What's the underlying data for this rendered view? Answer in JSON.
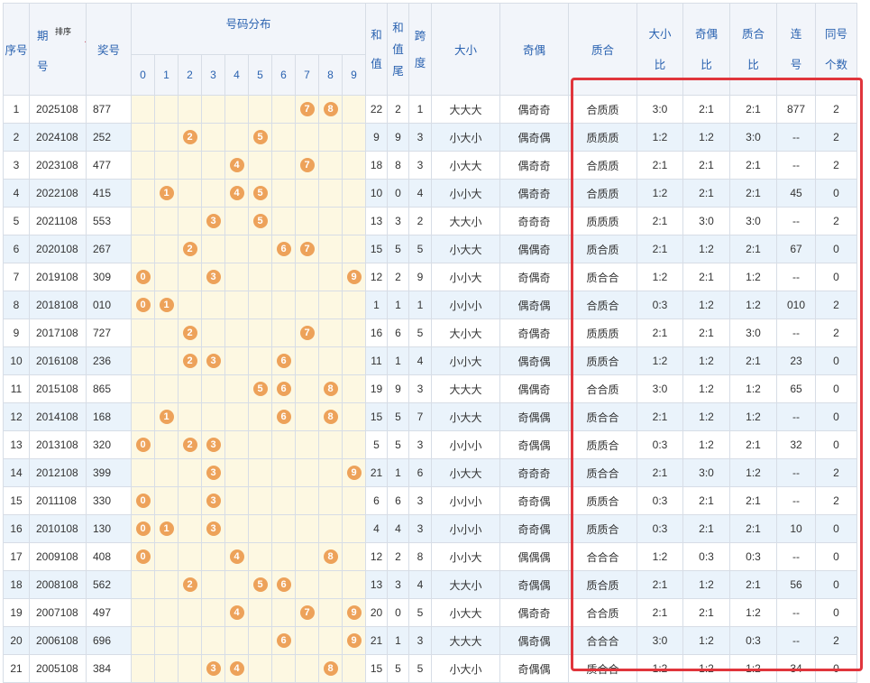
{
  "header": {
    "seq": "序号",
    "period_top": "期",
    "period_bottom": "号",
    "sort": "排序",
    "prize": "奖号",
    "dist": "号码分布",
    "digits": [
      "0",
      "1",
      "2",
      "3",
      "4",
      "5",
      "6",
      "7",
      "8",
      "9"
    ],
    "sum_top": "和",
    "sum_bottom": "值",
    "tail_top": "和",
    "tail_mid": "值",
    "tail_bottom": "尾",
    "span_top": "跨",
    "span_bottom": "度",
    "bigsmall": "大小",
    "oddeven": "奇偶",
    "primecomp": "质合",
    "bs_ratio_top": "大小",
    "bs_ratio_bottom": "比",
    "oe_ratio_top": "奇偶",
    "oe_ratio_bottom": "比",
    "pc_ratio_top": "质合",
    "pc_ratio_bottom": "比",
    "consec_top": "连",
    "consec_bottom": "号",
    "same_top": "同号",
    "same_bottom": "个数"
  },
  "rows": [
    {
      "seq": "1",
      "period": "2025108",
      "prize": "877",
      "sum": "22",
      "tail": "2",
      "span": "1",
      "bs": "大大大",
      "oe": "偶奇奇",
      "pc": "合质质",
      "bsr": "3:0",
      "oer": "2:1",
      "pcr": "2:1",
      "consec": "877",
      "same": "2"
    },
    {
      "seq": "2",
      "period": "2024108",
      "prize": "252",
      "sum": "9",
      "tail": "9",
      "span": "3",
      "bs": "小大小",
      "oe": "偶奇偶",
      "pc": "质质质",
      "bsr": "1:2",
      "oer": "1:2",
      "pcr": "3:0",
      "consec": "--",
      "same": "2"
    },
    {
      "seq": "3",
      "period": "2023108",
      "prize": "477",
      "sum": "18",
      "tail": "8",
      "span": "3",
      "bs": "小大大",
      "oe": "偶奇奇",
      "pc": "合质质",
      "bsr": "2:1",
      "oer": "2:1",
      "pcr": "2:1",
      "consec": "--",
      "same": "2"
    },
    {
      "seq": "4",
      "period": "2022108",
      "prize": "415",
      "sum": "10",
      "tail": "0",
      "span": "4",
      "bs": "小小大",
      "oe": "偶奇奇",
      "pc": "合质质",
      "bsr": "1:2",
      "oer": "2:1",
      "pcr": "2:1",
      "consec": "45",
      "same": "0"
    },
    {
      "seq": "5",
      "period": "2021108",
      "prize": "553",
      "sum": "13",
      "tail": "3",
      "span": "2",
      "bs": "大大小",
      "oe": "奇奇奇",
      "pc": "质质质",
      "bsr": "2:1",
      "oer": "3:0",
      "pcr": "3:0",
      "consec": "--",
      "same": "2"
    },
    {
      "seq": "6",
      "period": "2020108",
      "prize": "267",
      "sum": "15",
      "tail": "5",
      "span": "5",
      "bs": "小大大",
      "oe": "偶偶奇",
      "pc": "质合质",
      "bsr": "2:1",
      "oer": "1:2",
      "pcr": "2:1",
      "consec": "67",
      "same": "0"
    },
    {
      "seq": "7",
      "period": "2019108",
      "prize": "309",
      "sum": "12",
      "tail": "2",
      "span": "9",
      "bs": "小小大",
      "oe": "奇偶奇",
      "pc": "质合合",
      "bsr": "1:2",
      "oer": "2:1",
      "pcr": "1:2",
      "consec": "--",
      "same": "0"
    },
    {
      "seq": "8",
      "period": "2018108",
      "prize": "010",
      "sum": "1",
      "tail": "1",
      "span": "1",
      "bs": "小小小",
      "oe": "偶奇偶",
      "pc": "合质合",
      "bsr": "0:3",
      "oer": "1:2",
      "pcr": "1:2",
      "consec": "010",
      "same": "2"
    },
    {
      "seq": "9",
      "period": "2017108",
      "prize": "727",
      "sum": "16",
      "tail": "6",
      "span": "5",
      "bs": "大小大",
      "oe": "奇偶奇",
      "pc": "质质质",
      "bsr": "2:1",
      "oer": "2:1",
      "pcr": "3:0",
      "consec": "--",
      "same": "2"
    },
    {
      "seq": "10",
      "period": "2016108",
      "prize": "236",
      "sum": "11",
      "tail": "1",
      "span": "4",
      "bs": "小小大",
      "oe": "偶奇偶",
      "pc": "质质合",
      "bsr": "1:2",
      "oer": "1:2",
      "pcr": "2:1",
      "consec": "23",
      "same": "0"
    },
    {
      "seq": "11",
      "period": "2015108",
      "prize": "865",
      "sum": "19",
      "tail": "9",
      "span": "3",
      "bs": "大大大",
      "oe": "偶偶奇",
      "pc": "合合质",
      "bsr": "3:0",
      "oer": "1:2",
      "pcr": "1:2",
      "consec": "65",
      "same": "0"
    },
    {
      "seq": "12",
      "period": "2014108",
      "prize": "168",
      "sum": "15",
      "tail": "5",
      "span": "7",
      "bs": "小大大",
      "oe": "奇偶偶",
      "pc": "质合合",
      "bsr": "2:1",
      "oer": "1:2",
      "pcr": "1:2",
      "consec": "--",
      "same": "0"
    },
    {
      "seq": "13",
      "period": "2013108",
      "prize": "320",
      "sum": "5",
      "tail": "5",
      "span": "3",
      "bs": "小小小",
      "oe": "奇偶偶",
      "pc": "质质合",
      "bsr": "0:3",
      "oer": "1:2",
      "pcr": "2:1",
      "consec": "32",
      "same": "0"
    },
    {
      "seq": "14",
      "period": "2012108",
      "prize": "399",
      "sum": "21",
      "tail": "1",
      "span": "6",
      "bs": "小大大",
      "oe": "奇奇奇",
      "pc": "质合合",
      "bsr": "2:1",
      "oer": "3:0",
      "pcr": "1:2",
      "consec": "--",
      "same": "2"
    },
    {
      "seq": "15",
      "period": "2011108",
      "prize": "330",
      "sum": "6",
      "tail": "6",
      "span": "3",
      "bs": "小小小",
      "oe": "奇奇偶",
      "pc": "质质合",
      "bsr": "0:3",
      "oer": "2:1",
      "pcr": "2:1",
      "consec": "--",
      "same": "2"
    },
    {
      "seq": "16",
      "period": "2010108",
      "prize": "130",
      "sum": "4",
      "tail": "4",
      "span": "3",
      "bs": "小小小",
      "oe": "奇奇偶",
      "pc": "质质合",
      "bsr": "0:3",
      "oer": "2:1",
      "pcr": "2:1",
      "consec": "10",
      "same": "0"
    },
    {
      "seq": "17",
      "period": "2009108",
      "prize": "408",
      "sum": "12",
      "tail": "2",
      "span": "8",
      "bs": "小小大",
      "oe": "偶偶偶",
      "pc": "合合合",
      "bsr": "1:2",
      "oer": "0:3",
      "pcr": "0:3",
      "consec": "--",
      "same": "0"
    },
    {
      "seq": "18",
      "period": "2008108",
      "prize": "562",
      "sum": "13",
      "tail": "3",
      "span": "4",
      "bs": "大大小",
      "oe": "奇偶偶",
      "pc": "质合质",
      "bsr": "2:1",
      "oer": "1:2",
      "pcr": "2:1",
      "consec": "56",
      "same": "0"
    },
    {
      "seq": "19",
      "period": "2007108",
      "prize": "497",
      "sum": "20",
      "tail": "0",
      "span": "5",
      "bs": "小大大",
      "oe": "偶奇奇",
      "pc": "合合质",
      "bsr": "2:1",
      "oer": "2:1",
      "pcr": "1:2",
      "consec": "--",
      "same": "0"
    },
    {
      "seq": "20",
      "period": "2006108",
      "prize": "696",
      "sum": "21",
      "tail": "1",
      "span": "3",
      "bs": "大大大",
      "oe": "偶奇偶",
      "pc": "合合合",
      "bsr": "3:0",
      "oer": "1:2",
      "pcr": "0:3",
      "consec": "--",
      "same": "2"
    },
    {
      "seq": "21",
      "period": "2005108",
      "prize": "384",
      "sum": "15",
      "tail": "5",
      "span": "5",
      "bs": "小大小",
      "oe": "奇偶偶",
      "pc": "质合合",
      "bsr": "1:2",
      "oer": "1:2",
      "pcr": "1:2",
      "consec": "34",
      "same": "0"
    }
  ],
  "colors": {
    "ball": "#eda25a",
    "highlight": "#e0353c",
    "header_text": "#2a62b0",
    "dist_bg": "#fdf8e2",
    "alt_row": "#eaf3fb"
  },
  "icons": {
    "sort": "sort-up-arrow-icon",
    "ball": "number-ball-icon"
  }
}
